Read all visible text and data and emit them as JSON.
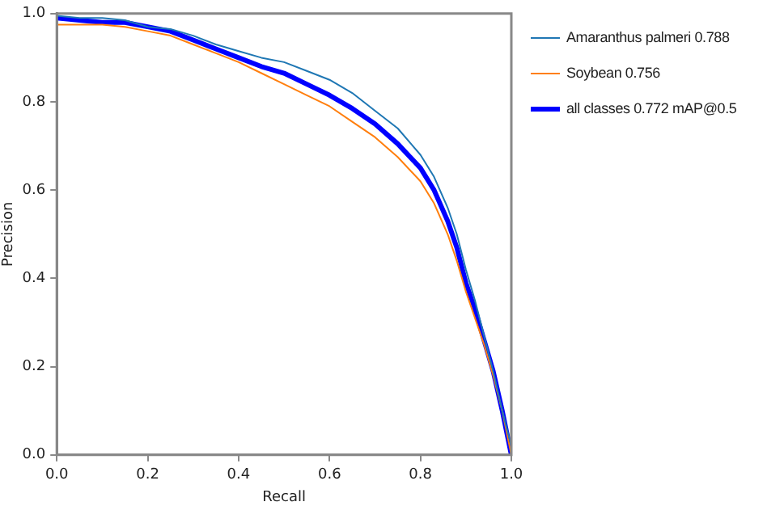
{
  "chart_data": {
    "type": "line",
    "xlabel": "Recall",
    "ylabel": "Precision",
    "xlim": [
      0,
      1
    ],
    "ylim": [
      0,
      1
    ],
    "xticks": [
      {
        "value": 0,
        "label": "0.0"
      },
      {
        "value": 0.2,
        "label": "0.2"
      },
      {
        "value": 0.4,
        "label": "0.4"
      },
      {
        "value": 0.6,
        "label": "0.6"
      },
      {
        "value": 0.8,
        "label": "0.8"
      },
      {
        "value": 1,
        "label": "1.0"
      }
    ],
    "yticks": [
      {
        "value": 0,
        "label": "0.0"
      },
      {
        "value": 0.2,
        "label": "0.2"
      },
      {
        "value": 0.4,
        "label": "0.4"
      },
      {
        "value": 0.6,
        "label": "0.6"
      },
      {
        "value": 0.8,
        "label": "0.8"
      },
      {
        "value": 1,
        "label": "1.0"
      }
    ],
    "grid": false,
    "legend": "right",
    "marker": "none",
    "line_style": "solid",
    "series": [
      {
        "name": "Amaranthus palmeri 0.788",
        "color": "#1f77b4",
        "x": [
          0,
          0.05,
          0.1,
          0.15,
          0.2,
          0.25,
          0.3,
          0.35,
          0.4,
          0.45,
          0.5,
          0.55,
          0.6,
          0.65,
          0.7,
          0.75,
          0.8,
          0.83,
          0.86,
          0.88,
          0.9,
          0.92,
          0.94,
          0.96,
          0.98,
          1.0
        ],
        "values": [
          0.995,
          0.99,
          0.99,
          0.985,
          0.97,
          0.965,
          0.95,
          0.93,
          0.915,
          0.9,
          0.89,
          0.87,
          0.85,
          0.82,
          0.78,
          0.74,
          0.68,
          0.63,
          0.56,
          0.5,
          0.42,
          0.35,
          0.27,
          0.19,
          0.1,
          0.02
        ]
      },
      {
        "name": "Soybean 0.756",
        "color": "#ff7f0e",
        "x": [
          0,
          0.05,
          0.1,
          0.15,
          0.2,
          0.25,
          0.3,
          0.35,
          0.4,
          0.45,
          0.5,
          0.55,
          0.6,
          0.65,
          0.7,
          0.75,
          0.8,
          0.83,
          0.86,
          0.88,
          0.9,
          0.92,
          0.94,
          0.96,
          0.98,
          1.0
        ],
        "values": [
          0.975,
          0.975,
          0.975,
          0.97,
          0.96,
          0.95,
          0.93,
          0.91,
          0.89,
          0.865,
          0.84,
          0.815,
          0.79,
          0.755,
          0.72,
          0.675,
          0.62,
          0.57,
          0.5,
          0.44,
          0.37,
          0.31,
          0.25,
          0.18,
          0.1,
          0.0
        ]
      },
      {
        "name": "all classes 0.772 mAP@0.5",
        "color": "#0000ff",
        "x": [
          0,
          0.05,
          0.1,
          0.15,
          0.2,
          0.25,
          0.3,
          0.35,
          0.4,
          0.45,
          0.5,
          0.55,
          0.6,
          0.65,
          0.7,
          0.75,
          0.8,
          0.83,
          0.86,
          0.88,
          0.9,
          0.92,
          0.94,
          0.96,
          0.98,
          1.0
        ],
        "values": [
          0.99,
          0.985,
          0.98,
          0.98,
          0.97,
          0.96,
          0.94,
          0.92,
          0.9,
          0.88,
          0.865,
          0.84,
          0.815,
          0.785,
          0.75,
          0.705,
          0.65,
          0.6,
          0.53,
          0.47,
          0.39,
          0.33,
          0.26,
          0.19,
          0.1,
          0.0
        ]
      }
    ]
  }
}
